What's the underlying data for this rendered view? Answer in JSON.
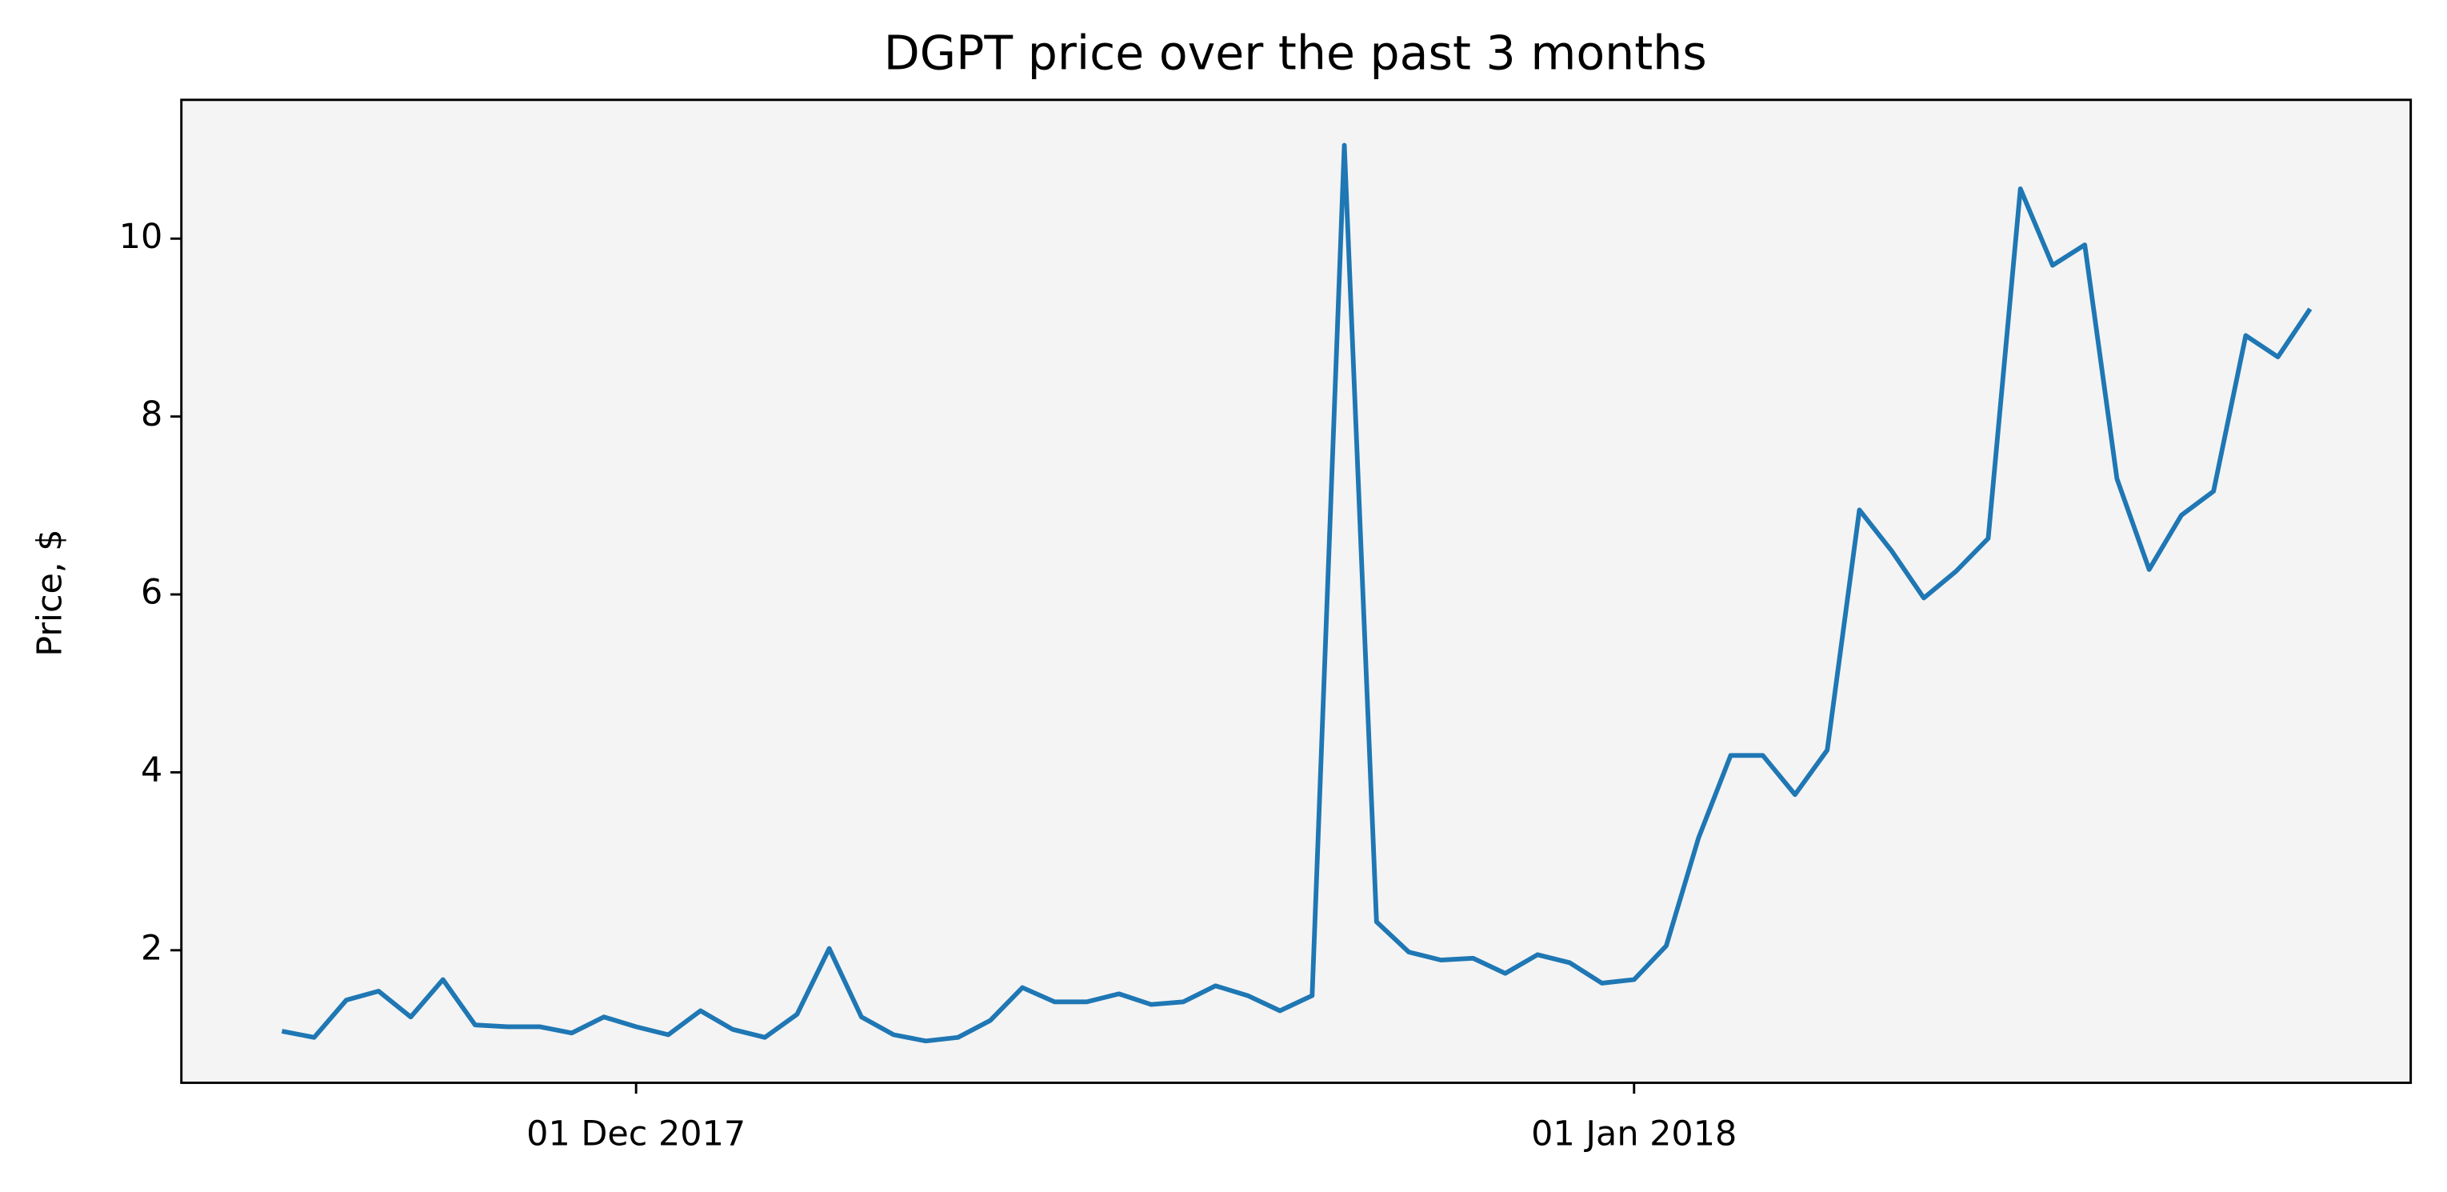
{
  "chart_data": {
    "type": "line",
    "title": "DGPT price over the past 3 months",
    "ylabel": "Price, $",
    "x": [
      "2017-11-20",
      "2017-11-21",
      "2017-11-22",
      "2017-11-23",
      "2017-11-24",
      "2017-11-25",
      "2017-11-26",
      "2017-11-27",
      "2017-11-28",
      "2017-11-29",
      "2017-11-30",
      "2017-12-01",
      "2017-12-02",
      "2017-12-03",
      "2017-12-04",
      "2017-12-05",
      "2017-12-06",
      "2017-12-07",
      "2017-12-08",
      "2017-12-09",
      "2017-12-10",
      "2017-12-11",
      "2017-12-12",
      "2017-12-13",
      "2017-12-14",
      "2017-12-15",
      "2017-12-16",
      "2017-12-17",
      "2017-12-18",
      "2017-12-19",
      "2017-12-20",
      "2017-12-21",
      "2017-12-22",
      "2017-12-23",
      "2017-12-24",
      "2017-12-25",
      "2017-12-26",
      "2017-12-27",
      "2017-12-28",
      "2017-12-29",
      "2017-12-30",
      "2017-12-31",
      "2018-01-01",
      "2018-01-02",
      "2018-01-03",
      "2018-01-04",
      "2018-01-05",
      "2018-01-06",
      "2018-01-07",
      "2018-01-08",
      "2018-01-09",
      "2018-01-10",
      "2018-01-11",
      "2018-01-12",
      "2018-01-13",
      "2018-01-14",
      "2018-01-15",
      "2018-01-16",
      "2018-01-17",
      "2018-01-18",
      "2018-01-19",
      "2018-01-20",
      "2018-01-21",
      "2018-01-22"
    ],
    "series": [
      {
        "name": "DGPT",
        "color": "#1f77b4",
        "values": [
          1.09,
          1.02,
          1.44,
          1.54,
          1.25,
          1.67,
          1.16,
          1.14,
          1.14,
          1.07,
          1.25,
          1.14,
          1.05,
          1.32,
          1.11,
          1.02,
          1.28,
          2.02,
          1.25,
          1.05,
          0.98,
          1.02,
          1.21,
          1.58,
          1.42,
          1.42,
          1.51,
          1.39,
          1.42,
          1.6,
          1.49,
          1.32,
          1.49,
          11.05,
          2.32,
          1.98,
          1.89,
          1.91,
          1.74,
          1.95,
          1.86,
          1.63,
          1.67,
          2.05,
          3.26,
          4.19,
          4.19,
          3.75,
          4.25,
          6.95,
          6.49,
          5.96,
          6.26,
          6.63,
          10.56,
          9.7,
          9.93,
          7.3,
          6.28,
          6.89,
          7.16,
          8.91,
          8.67,
          9.21
        ]
      }
    ],
    "xlim": [
      "2017-11-16T21:00Z",
      "2018-01-25T03:00Z"
    ],
    "xticks": [
      {
        "value": "2017-12-01",
        "label": "01 Dec 2017"
      },
      {
        "value": "2018-01-01",
        "label": "01 Jan 2018"
      }
    ],
    "ylim": [
      0.51,
      11.56
    ],
    "yticks": [
      2,
      4,
      6,
      8,
      10
    ],
    "background": "#f4f4f4"
  }
}
